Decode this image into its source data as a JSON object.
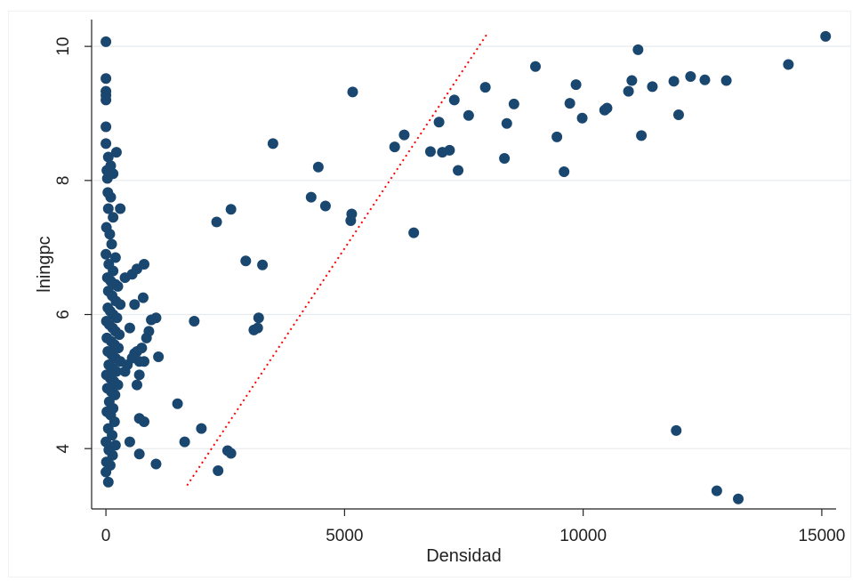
{
  "chart_data": {
    "type": "scatter",
    "title": "",
    "xlabel": "Densidad",
    "ylabel": "lningpc",
    "xlim": [
      -300,
      15300
    ],
    "ylim": [
      3.1,
      10.4
    ],
    "xticks": [
      0,
      5000,
      10000,
      15000
    ],
    "xtick_labels": [
      "0",
      "5000",
      "10000",
      "15000"
    ],
    "yticks": [
      4,
      6,
      8,
      10
    ],
    "ytick_labels": [
      "4",
      "6",
      "8",
      "10"
    ],
    "grid": "horizontal",
    "legend": "none",
    "marker_color": "#1a476f",
    "grid_color": "#e6ebef",
    "line_color": "#ff0000",
    "reference_line": {
      "style": "dotted",
      "points": [
        [
          1700,
          3.45
        ],
        [
          8000,
          10.2
        ]
      ]
    },
    "points": [
      [
        0,
        10.07
      ],
      [
        0,
        9.52
      ],
      [
        0,
        9.33
      ],
      [
        0,
        9.27
      ],
      [
        0,
        9.2
      ],
      [
        0,
        8.8
      ],
      [
        0,
        8.55
      ],
      [
        50,
        8.35
      ],
      [
        100,
        8.22
      ],
      [
        20,
        8.15
      ],
      [
        150,
        8.1
      ],
      [
        30,
        8.03
      ],
      [
        220,
        8.42
      ],
      [
        40,
        7.82
      ],
      [
        100,
        7.75
      ],
      [
        50,
        7.58
      ],
      [
        150,
        7.45
      ],
      [
        300,
        7.58
      ],
      [
        10,
        7.3
      ],
      [
        80,
        7.2
      ],
      [
        120,
        7.05
      ],
      [
        0,
        6.9
      ],
      [
        200,
        6.85
      ],
      [
        60,
        6.75
      ],
      [
        150,
        6.65
      ],
      [
        30,
        6.55
      ],
      [
        100,
        6.5
      ],
      [
        200,
        6.45
      ],
      [
        250,
        6.42
      ],
      [
        50,
        6.35
      ],
      [
        130,
        6.28
      ],
      [
        210,
        6.2
      ],
      [
        300,
        6.15
      ],
      [
        40,
        6.1
      ],
      [
        90,
        6.05
      ],
      [
        150,
        6.0
      ],
      [
        230,
        5.95
      ],
      [
        10,
        5.9
      ],
      [
        70,
        5.85
      ],
      [
        140,
        5.8
      ],
      [
        200,
        5.75
      ],
      [
        280,
        5.7
      ],
      [
        20,
        5.65
      ],
      [
        110,
        5.6
      ],
      [
        180,
        5.55
      ],
      [
        260,
        5.5
      ],
      [
        40,
        5.45
      ],
      [
        120,
        5.4
      ],
      [
        200,
        5.35
      ],
      [
        300,
        5.3
      ],
      [
        60,
        5.25
      ],
      [
        140,
        5.2
      ],
      [
        220,
        5.15
      ],
      [
        10,
        5.1
      ],
      [
        90,
        5.05
      ],
      [
        170,
        5.0
      ],
      [
        250,
        4.95
      ],
      [
        30,
        4.9
      ],
      [
        110,
        4.85
      ],
      [
        190,
        4.8
      ],
      [
        70,
        4.7
      ],
      [
        150,
        4.6
      ],
      [
        20,
        4.55
      ],
      [
        100,
        4.5
      ],
      [
        180,
        4.4
      ],
      [
        50,
        4.3
      ],
      [
        130,
        4.2
      ],
      [
        0,
        4.1
      ],
      [
        200,
        4.05
      ],
      [
        60,
        3.98
      ],
      [
        140,
        3.9
      ],
      [
        10,
        3.8
      ],
      [
        90,
        3.75
      ],
      [
        0,
        3.65
      ],
      [
        50,
        3.5
      ],
      [
        400,
        6.55
      ],
      [
        550,
        6.6
      ],
      [
        650,
        6.68
      ],
      [
        800,
        6.75
      ],
      [
        780,
        6.25
      ],
      [
        600,
        6.15
      ],
      [
        950,
        5.92
      ],
      [
        1050,
        5.95
      ],
      [
        900,
        5.75
      ],
      [
        850,
        5.65
      ],
      [
        750,
        5.5
      ],
      [
        650,
        5.45
      ],
      [
        550,
        5.35
      ],
      [
        450,
        5.25
      ],
      [
        700,
        5.3
      ],
      [
        800,
        5.3
      ],
      [
        1100,
        5.37
      ],
      [
        700,
        5.1
      ],
      [
        650,
        4.95
      ],
      [
        500,
        5.8
      ],
      [
        600,
        5.42
      ],
      [
        700,
        4.45
      ],
      [
        800,
        4.4
      ],
      [
        500,
        4.1
      ],
      [
        700,
        3.92
      ],
      [
        1050,
        3.77
      ],
      [
        400,
        5.15
      ],
      [
        1500,
        4.67
      ],
      [
        1650,
        4.1
      ],
      [
        1850,
        5.9
      ],
      [
        2000,
        4.3
      ],
      [
        2320,
        7.38
      ],
      [
        2350,
        3.67
      ],
      [
        2550,
        3.97
      ],
      [
        2620,
        3.93
      ],
      [
        2620,
        7.57
      ],
      [
        2930,
        6.8
      ],
      [
        3100,
        5.77
      ],
      [
        3180,
        5.8
      ],
      [
        3200,
        5.95
      ],
      [
        3280,
        6.74
      ],
      [
        3500,
        8.55
      ],
      [
        4300,
        7.75
      ],
      [
        4450,
        8.2
      ],
      [
        4600,
        7.62
      ],
      [
        5130,
        7.4
      ],
      [
        5150,
        7.5
      ],
      [
        5170,
        9.32
      ],
      [
        6050,
        8.5
      ],
      [
        6250,
        8.68
      ],
      [
        6450,
        7.22
      ],
      [
        6800,
        8.43
      ],
      [
        6980,
        8.87
      ],
      [
        7050,
        8.42
      ],
      [
        7200,
        8.45
      ],
      [
        7300,
        9.2
      ],
      [
        7380,
        8.15
      ],
      [
        7600,
        8.97
      ],
      [
        7950,
        9.39
      ],
      [
        8350,
        8.33
      ],
      [
        8400,
        8.85
      ],
      [
        8550,
        9.14
      ],
      [
        9000,
        9.7
      ],
      [
        9450,
        8.65
      ],
      [
        9600,
        8.13
      ],
      [
        9720,
        9.15
      ],
      [
        9850,
        9.43
      ],
      [
        9980,
        8.93
      ],
      [
        10450,
        9.05
      ],
      [
        10500,
        9.08
      ],
      [
        10950,
        9.33
      ],
      [
        11020,
        9.49
      ],
      [
        11150,
        9.95
      ],
      [
        11220,
        8.67
      ],
      [
        11450,
        9.4
      ],
      [
        11900,
        9.48
      ],
      [
        11950,
        4.27
      ],
      [
        12000,
        8.98
      ],
      [
        12250,
        9.55
      ],
      [
        12550,
        9.5
      ],
      [
        12800,
        3.37
      ],
      [
        13000,
        9.49
      ],
      [
        13250,
        3.25
      ],
      [
        14300,
        9.73
      ],
      [
        15080,
        10.15
      ]
    ]
  }
}
